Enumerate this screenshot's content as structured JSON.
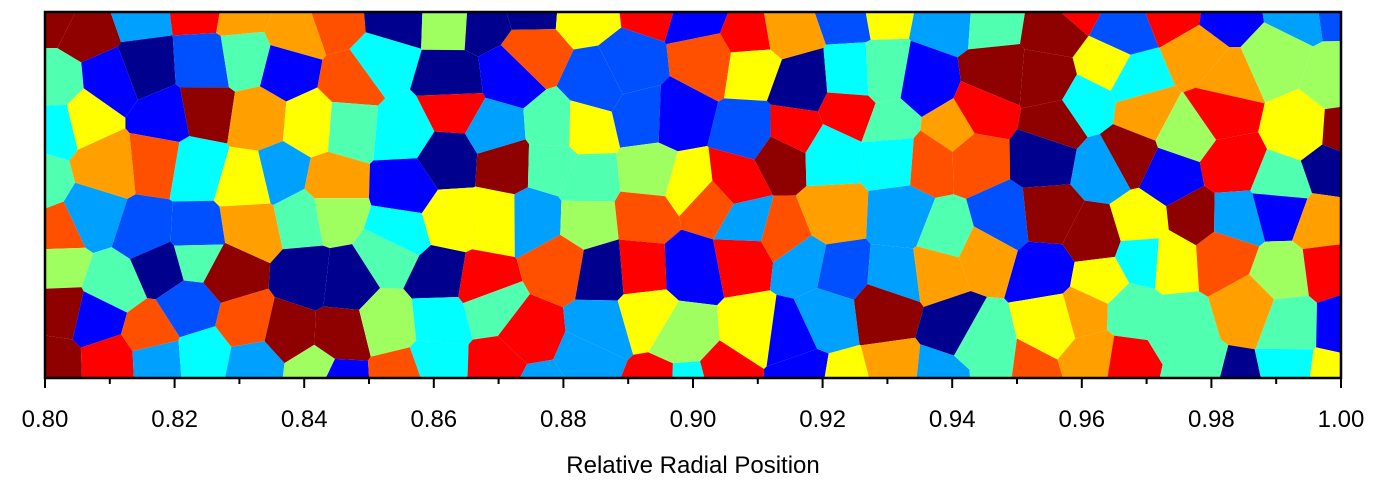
{
  "chart_data": {
    "type": "image",
    "xlabel": "Relative Radial Position",
    "xlim": [
      0.8,
      1.0
    ],
    "xticks": [
      {
        "value": 0.8,
        "label": "0.80"
      },
      0.82,
      0.84,
      0.86,
      0.88,
      {
        "value": 0.9,
        "label": "0.90"
      },
      0.92,
      0.94,
      0.96,
      0.98,
      {
        "value": 1.0,
        "label": "1.00"
      }
    ],
    "xminorticks": [
      0.81,
      0.83,
      0.85,
      0.87,
      0.89,
      0.91,
      0.93,
      0.95,
      0.97,
      0.99
    ]
  }
}
